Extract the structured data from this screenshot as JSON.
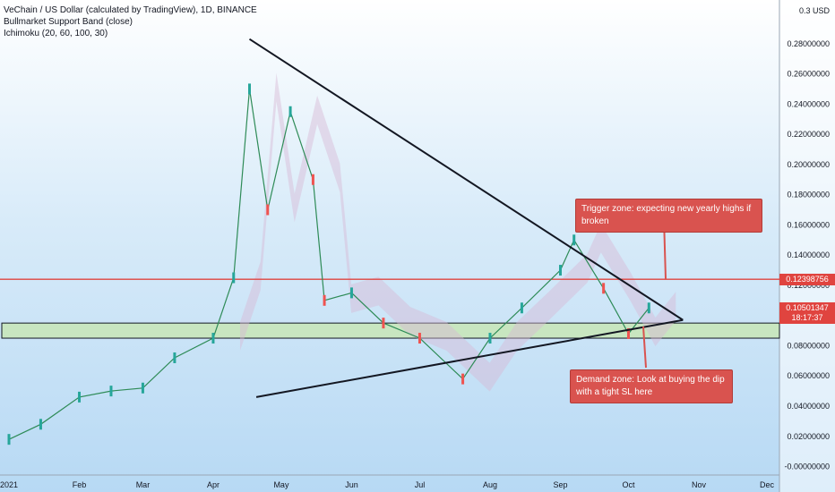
{
  "legend": {
    "title": "VeChain / US Dollar (calculated by TradingView), 1D, BINANCE",
    "indicator1": "Bullmarket Support Band (close)",
    "indicator2": "Ichimoku (20, 60, 100, 30)"
  },
  "axis": {
    "currency_top": "0.3",
    "currency_unit": "USD"
  },
  "annotations": {
    "trigger": "Trigger zone: expecting new yearly highs if broken",
    "demand": "Demand zone: Look at buying the dip with a tight SL here"
  },
  "price_tags": {
    "resistance": "0.12398756",
    "last_price": "0.10501347",
    "countdown": "18:17:37"
  },
  "colors": {
    "resistance_line": "#e0443f",
    "demand_zone_fill": "#c8e6c0",
    "up_candle": "#26a69a",
    "down_candle": "#ef5350",
    "triangle": "#131722",
    "callout_bg": "#d9534f",
    "cloud": "#d7b8d4",
    "cloud_green": "#bfe6c6"
  },
  "chart_data": {
    "type": "line",
    "title": "VeChain / US Dollar (calculated by TradingView), 1D, BINANCE",
    "xlabel": "",
    "ylabel": "",
    "ylim": [
      -0.005,
      0.3
    ],
    "x_ticks": [
      "2021",
      "Feb",
      "Mar",
      "Apr",
      "May",
      "Jun",
      "Jul",
      "Aug",
      "Sep",
      "Oct",
      "Nov",
      "Dec"
    ],
    "y_ticks": [
      "-0.00000000",
      "0.02000000",
      "0.04000000",
      "0.06000000",
      "0.08000000",
      "0.10000000",
      "0.12000000",
      "0.14000000",
      "0.16000000",
      "0.18000000",
      "0.20000000",
      "0.22000000",
      "0.24000000",
      "0.26000000",
      "0.28000000"
    ],
    "series": [
      {
        "x": [
          "2021-01-01",
          "2021-01-15",
          "2021-02-01",
          "2021-02-15",
          "2021-03-01",
          "2021-03-15",
          "2021-04-01",
          "2021-04-10",
          "2021-04-17",
          "2021-04-25",
          "2021-05-05",
          "2021-05-15",
          "2021-05-20",
          "2021-06-01",
          "2021-06-15",
          "2021-07-01",
          "2021-07-20",
          "2021-08-01",
          "2021-08-15",
          "2021-09-01",
          "2021-09-07",
          "2021-09-20",
          "2021-10-01",
          "2021-10-10"
        ],
        "values": [
          0.018,
          0.028,
          0.046,
          0.05,
          0.052,
          0.072,
          0.085,
          0.125,
          0.25,
          0.17,
          0.235,
          0.19,
          0.11,
          0.115,
          0.095,
          0.085,
          0.058,
          0.085,
          0.105,
          0.13,
          0.15,
          0.118,
          0.088,
          0.105
        ]
      }
    ],
    "levels": {
      "resistance": 0.12398756,
      "demand_zone": [
        0.085,
        0.095
      ],
      "last_price": 0.10501347
    },
    "trendlines": [
      {
        "from": [
          "2021-04-17",
          0.283
        ],
        "to": [
          "2021-10-25",
          0.097
        ]
      },
      {
        "from": [
          "2021-04-20",
          0.046
        ],
        "to": [
          "2021-10-25",
          0.097
        ]
      }
    ],
    "grid": false,
    "legend_position": "top-left"
  }
}
